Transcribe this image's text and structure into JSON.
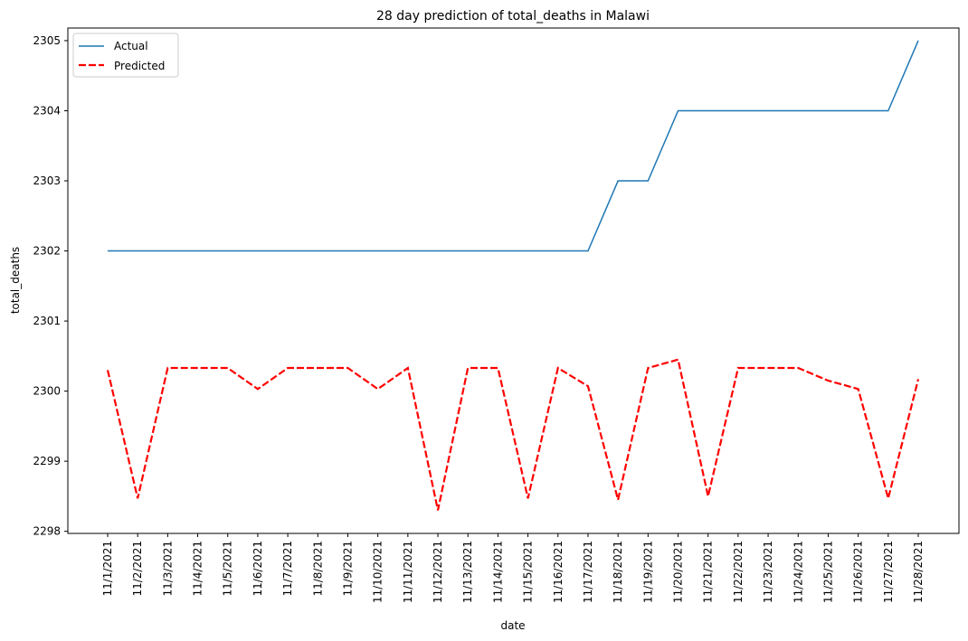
{
  "chart_data": {
    "type": "line",
    "title": "28 day prediction of total_deaths in Malawi",
    "xlabel": "date",
    "ylabel": "total_deaths",
    "ylim": [
      2297.97,
      2305.18
    ],
    "yticks": [
      2298,
      2299,
      2300,
      2301,
      2302,
      2303,
      2304,
      2305
    ],
    "legend_position": "upper-left",
    "grid": false,
    "categories": [
      "11/1/2021",
      "11/2/2021",
      "11/3/2021",
      "11/4/2021",
      "11/5/2021",
      "11/6/2021",
      "11/7/2021",
      "11/8/2021",
      "11/9/2021",
      "11/10/2021",
      "11/11/2021",
      "11/12/2021",
      "11/13/2021",
      "11/14/2021",
      "11/15/2021",
      "11/16/2021",
      "11/17/2021",
      "11/18/2021",
      "11/19/2021",
      "11/20/2021",
      "11/21/2021",
      "11/22/2021",
      "11/23/2021",
      "11/24/2021",
      "11/25/2021",
      "11/26/2021",
      "11/27/2021",
      "11/28/2021"
    ],
    "series": [
      {
        "name": "Actual",
        "color": "#1f77b4",
        "style": "solid",
        "values": [
          2302,
          2302,
          2302,
          2302,
          2302,
          2302,
          2302,
          2302,
          2302,
          2302,
          2302,
          2302,
          2302,
          2302,
          2302,
          2302,
          2302,
          2303,
          2303,
          2304,
          2304,
          2304,
          2304,
          2304,
          2304,
          2304,
          2304,
          2305
        ]
      },
      {
        "name": "Predicted",
        "color": "#ff0000",
        "style": "dashed",
        "values": [
          2300.3,
          2298.47,
          2300.33,
          2300.33,
          2300.33,
          2300.03,
          2300.33,
          2300.33,
          2300.33,
          2300.03,
          2300.33,
          2298.3,
          2300.33,
          2300.33,
          2298.47,
          2300.33,
          2300.07,
          2298.45,
          2300.33,
          2300.45,
          2298.5,
          2300.33,
          2300.33,
          2300.33,
          2300.15,
          2300.03,
          2298.47,
          2300.17
        ]
      }
    ]
  }
}
